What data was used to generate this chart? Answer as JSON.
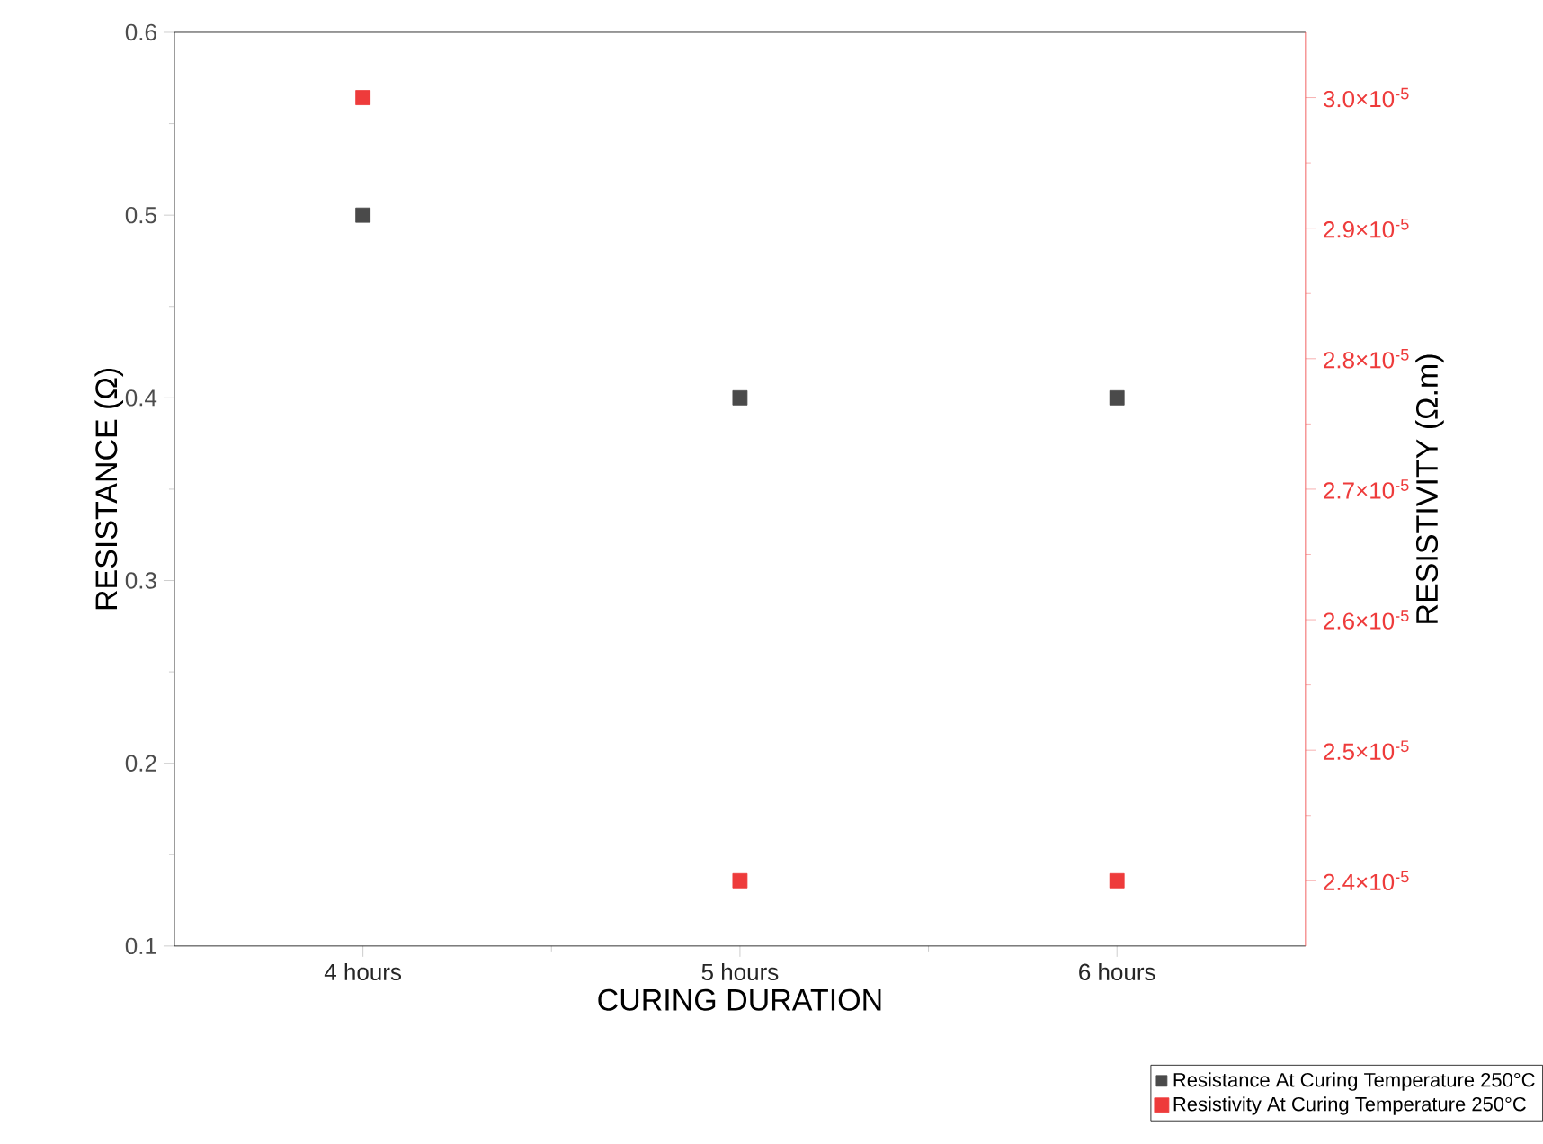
{
  "chart_data": {
    "type": "scatter",
    "xlabel": "CURING DURATION",
    "ylabel": "RESISTANCE (Ω)",
    "y2label": "RESISTIVITY (Ω.m)",
    "categories": [
      "4 hours",
      "5 hours",
      "6 hours"
    ],
    "series": [
      {
        "name": "Resistance At Curing Temperature 250°C",
        "color": "#4a4a4a",
        "values": [
          0.5,
          0.4,
          0.4
        ]
      },
      {
        "name": "Resistivity At Curing Temperature 250°C",
        "color": "#ee3b3b",
        "values": [
          3e-05,
          2.4e-05,
          2.4e-05
        ],
        "axis": "y2"
      }
    ],
    "ylim": [
      0.1,
      0.6
    ],
    "yticks": [
      0.1,
      0.2,
      0.3,
      0.4,
      0.5,
      0.6
    ],
    "y2lim": [
      2.35e-05,
      3.05e-05
    ],
    "y2ticks": [
      {
        "value": 2.4e-05,
        "label": "2.4×10$^{-5}$"
      },
      {
        "value": 2.5e-05,
        "label": "2.5×10$^{-5}$"
      },
      {
        "value": 2.6e-05,
        "label": "2.6×10$^{-5}$"
      },
      {
        "value": 2.7e-05,
        "label": "2.7×10$^{-5}$"
      },
      {
        "value": 2.8e-05,
        "label": "2.8×10$^{-5}$"
      },
      {
        "value": 2.9e-05,
        "label": "2.9×10$^{-5}$"
      },
      {
        "value": 3e-05,
        "label": "3.0×10$^{-5}$"
      }
    ],
    "marker": "square",
    "legend": "bottom right"
  }
}
